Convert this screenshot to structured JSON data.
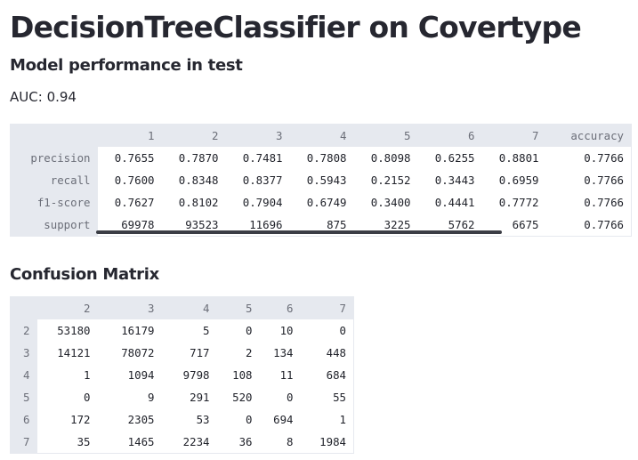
{
  "title": "DecisionTreeClassifier on Covertype",
  "performance_section": {
    "subheader": "Model performance in test",
    "auc_label": "AUC:",
    "auc_value": "0.94"
  },
  "metrics_table": {
    "columns": [
      "1",
      "2",
      "3",
      "4",
      "5",
      "6",
      "7",
      "accuracy"
    ],
    "rows": [
      {
        "label": "precision",
        "values": [
          "0.7655",
          "0.7870",
          "0.7481",
          "0.7808",
          "0.8098",
          "0.6255",
          "0.8801",
          "0.7766"
        ]
      },
      {
        "label": "recall",
        "values": [
          "0.7600",
          "0.8348",
          "0.8377",
          "0.5943",
          "0.2152",
          "0.3443",
          "0.6959",
          "0.7766"
        ]
      },
      {
        "label": "f1-score",
        "values": [
          "0.7627",
          "0.8102",
          "0.7904",
          "0.6749",
          "0.3400",
          "0.4441",
          "0.7772",
          "0.7766"
        ]
      },
      {
        "label": "support",
        "values": [
          "69978",
          "93523",
          "11696",
          "875",
          "3225",
          "5762",
          "6675",
          "0.7766"
        ]
      }
    ]
  },
  "confusion_section": {
    "subheader": "Confusion Matrix"
  },
  "confusion_matrix": {
    "columns": [
      "2",
      "3",
      "4",
      "5",
      "6",
      "7"
    ],
    "rows": [
      {
        "label": "2",
        "values": [
          "53180",
          "16179",
          "5",
          "0",
          "10",
          "0"
        ]
      },
      {
        "label": "3",
        "values": [
          "14121",
          "78072",
          "717",
          "2",
          "134",
          "448"
        ]
      },
      {
        "label": "4",
        "values": [
          "1",
          "1094",
          "9798",
          "108",
          "11",
          "684"
        ]
      },
      {
        "label": "5",
        "values": [
          "0",
          "9",
          "291",
          "520",
          "0",
          "55"
        ]
      },
      {
        "label": "6",
        "values": [
          "172",
          "2305",
          "53",
          "0",
          "694",
          "1"
        ]
      },
      {
        "label": "7",
        "values": [
          "35",
          "1465",
          "2234",
          "36",
          "8",
          "1984"
        ]
      }
    ]
  },
  "colors": {
    "header_bg": "#e6e9ef",
    "header_text": "#6b6e78",
    "cell_text": "#1f2129",
    "scrollbar": "#3b3d45"
  }
}
